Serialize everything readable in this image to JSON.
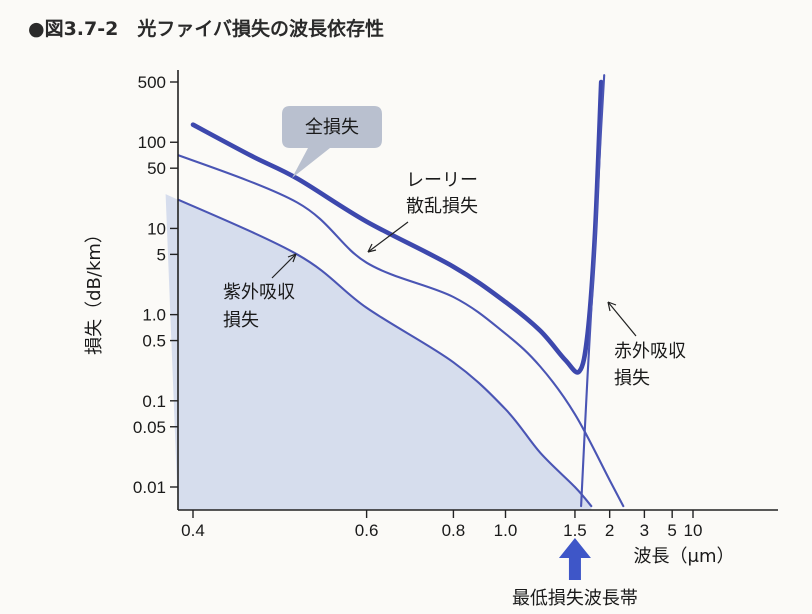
{
  "figure_title": "●図3.7-2　光ファイバ損失の波長依存性",
  "colors": {
    "curve": "#4a55b4",
    "total_curve": "#3d48ad",
    "shade": "#c9d3ea",
    "callout": "#b9c0cf",
    "arrow_optimum": "#3e56c8"
  },
  "chart_data": {
    "type": "line",
    "x_scale": "reciprocal",
    "y_scale": "log",
    "xlabel": "波長（μm）",
    "ylabel": "損失（dB/km）",
    "x_ticks": [
      "0.4",
      "0.6",
      "0.8",
      "1.0",
      "1.5",
      "2",
      "3",
      "5",
      "10"
    ],
    "y_ticks": [
      "500",
      "100",
      "50",
      "10",
      "5",
      "1.0",
      "0.5",
      "0.1",
      "0.05",
      "0.01"
    ],
    "ylim": [
      0.0065,
      600
    ],
    "xlim": [
      0.38,
      12
    ],
    "series": [
      {
        "name": "全損失",
        "x": [
          0.4,
          0.45,
          0.5,
          0.6,
          0.8,
          1.0,
          1.2,
          1.4,
          1.55,
          1.65,
          1.75,
          1.85
        ],
        "y": [
          160,
          70,
          38,
          12,
          3.6,
          1.4,
          0.65,
          0.3,
          0.22,
          0.6,
          8,
          500
        ]
      },
      {
        "name": "レーリー散乱損失",
        "x": [
          0.38,
          0.5,
          0.6,
          0.8,
          1.0,
          1.2,
          1.5,
          2.0,
          2.3
        ],
        "y": [
          80,
          20,
          4,
          1.6,
          0.6,
          0.25,
          0.07,
          0.012,
          0.006
        ]
      },
      {
        "name": "紫外吸収損失",
        "x": [
          0.38,
          0.5,
          0.6,
          0.8,
          1.0,
          1.2,
          1.5,
          1.7
        ],
        "y": [
          25,
          5,
          1.2,
          0.28,
          0.08,
          0.025,
          0.01,
          0.006
        ]
      },
      {
        "name": "赤外吸収損失",
        "x": [
          1.57,
          1.65,
          1.75,
          1.85,
          1.9
        ],
        "y": [
          0.006,
          0.2,
          6,
          150,
          600
        ]
      }
    ],
    "annotations": {
      "total": "全損失",
      "rayleigh_line1": "レーリー",
      "rayleigh_line2": "散乱損失",
      "uv_line1": "紫外吸収",
      "uv_line2": "損失",
      "ir_line1": "赤外吸収",
      "ir_line2": "損失",
      "optimum": "最低損失波長帯"
    },
    "optimum_wavelength": 1.5
  }
}
